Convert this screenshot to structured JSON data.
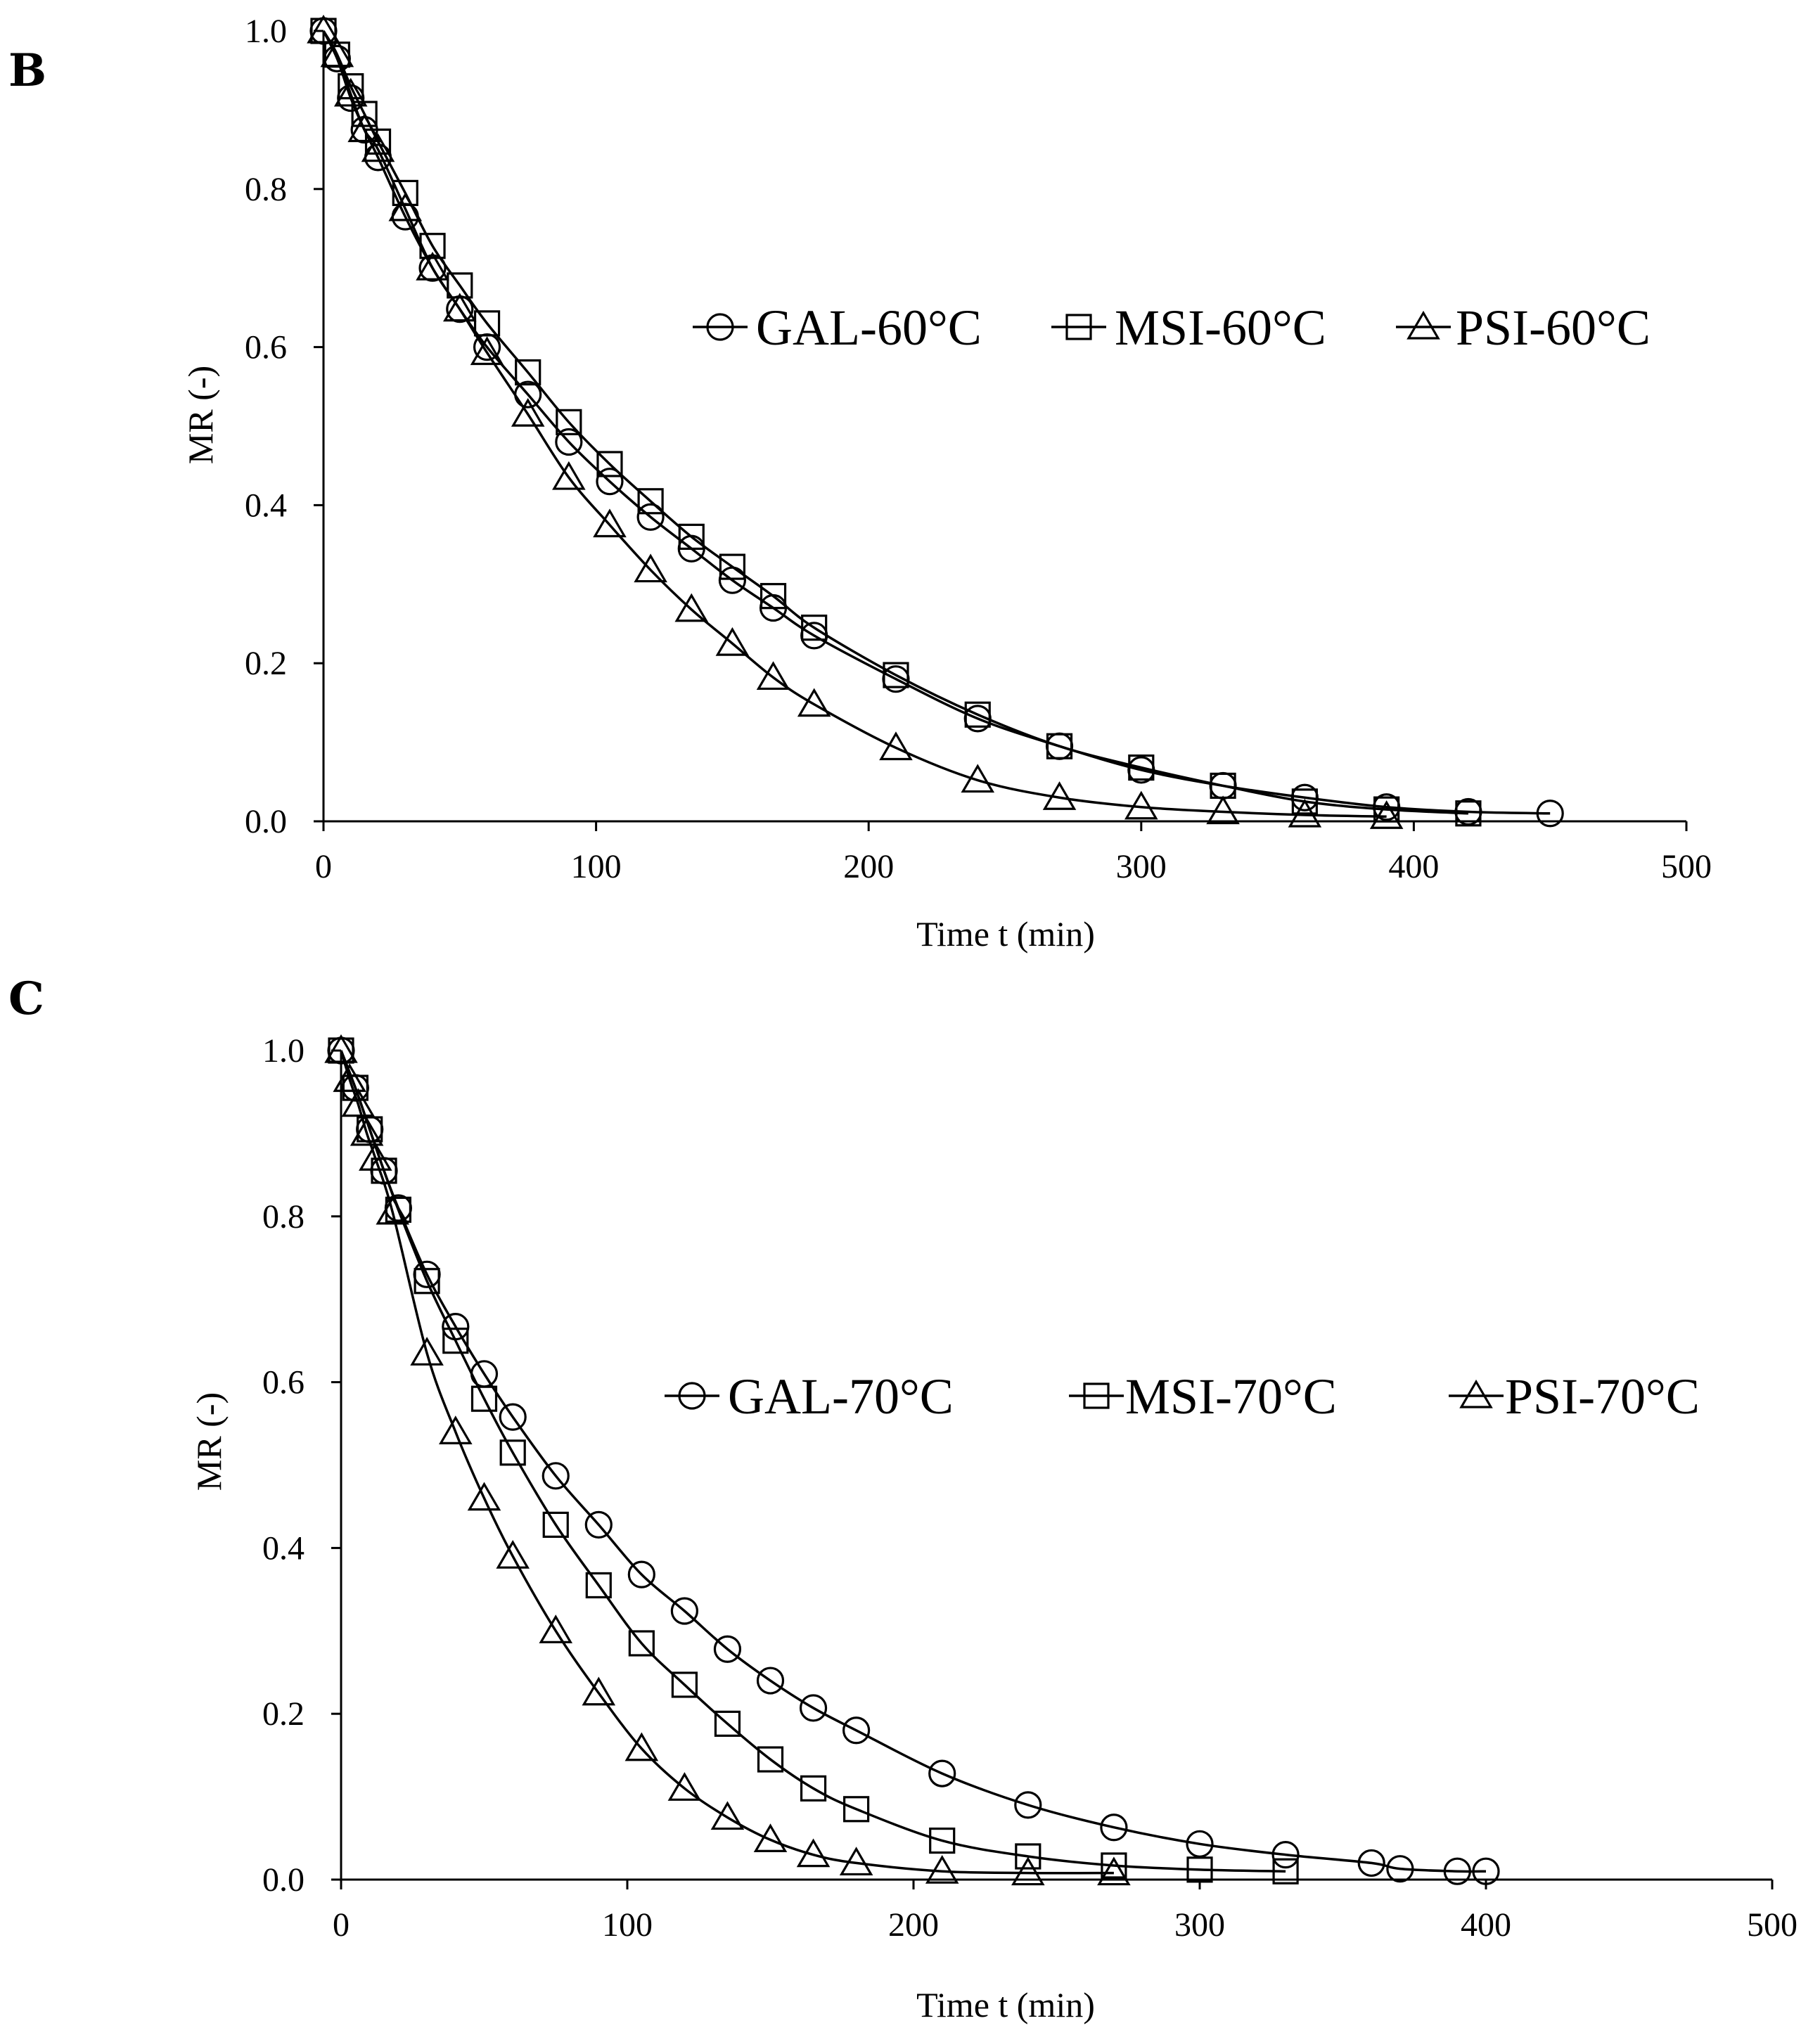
{
  "chart_data": [
    {
      "panel_label": "B",
      "type": "line",
      "xlabel": "Time t (min)",
      "ylabel": "MR (-)",
      "xlim": [
        0,
        500
      ],
      "ylim": [
        0.0,
        1.0
      ],
      "xticks": [
        "0",
        "100",
        "200",
        "300",
        "400",
        "500"
      ],
      "yticks": [
        "0.0",
        "0.2",
        "0.4",
        "0.6",
        "0.8",
        "1.0"
      ],
      "grid": false,
      "legend_position": "top-right",
      "series": [
        {
          "name": "GAL-60°C",
          "marker": "circle",
          "x": [
            0,
            5,
            10,
            15,
            20,
            30,
            40,
            50,
            60,
            75,
            90,
            105,
            120,
            135,
            150,
            165,
            180,
            210,
            240,
            270,
            300,
            330,
            360,
            390,
            420,
            450
          ],
          "y": [
            1.0,
            0.965,
            0.915,
            0.875,
            0.84,
            0.765,
            0.7,
            0.648,
            0.6,
            0.54,
            0.48,
            0.43,
            0.385,
            0.345,
            0.305,
            0.27,
            0.235,
            0.18,
            0.13,
            0.095,
            0.065,
            0.045,
            0.03,
            0.018,
            0.012,
            0.01
          ]
        },
        {
          "name": "MSI-60°C",
          "marker": "square",
          "x": [
            0,
            5,
            10,
            15,
            20,
            30,
            40,
            50,
            60,
            75,
            90,
            105,
            120,
            135,
            150,
            165,
            180,
            210,
            240,
            270,
            300,
            330,
            360,
            390,
            420
          ],
          "y": [
            1.0,
            0.97,
            0.93,
            0.895,
            0.86,
            0.795,
            0.728,
            0.678,
            0.63,
            0.568,
            0.505,
            0.452,
            0.405,
            0.36,
            0.322,
            0.285,
            0.245,
            0.185,
            0.135,
            0.095,
            0.068,
            0.045,
            0.025,
            0.015,
            0.01
          ]
        },
        {
          "name": "PSI-60°C",
          "marker": "triangle",
          "x": [
            0,
            5,
            10,
            15,
            20,
            30,
            40,
            50,
            60,
            75,
            90,
            105,
            120,
            135,
            150,
            165,
            180,
            210,
            240,
            270,
            300,
            330,
            360,
            390
          ],
          "y": [
            1.0,
            0.97,
            0.92,
            0.875,
            0.85,
            0.775,
            0.7,
            0.648,
            0.593,
            0.515,
            0.435,
            0.375,
            0.318,
            0.268,
            0.225,
            0.182,
            0.148,
            0.093,
            0.052,
            0.03,
            0.018,
            0.012,
            0.008,
            0.006
          ]
        }
      ]
    },
    {
      "panel_label": "C",
      "type": "line",
      "xlabel": "Time t (min)",
      "ylabel": "MR (-)",
      "xlim": [
        0,
        500
      ],
      "ylim": [
        0.0,
        1.0
      ],
      "xticks": [
        "0",
        "100",
        "200",
        "300",
        "400",
        "500"
      ],
      "yticks": [
        "0.0",
        "0.2",
        "0.4",
        "0.6",
        "0.8",
        "1.0"
      ],
      "grid": false,
      "legend_position": "top-right",
      "series": [
        {
          "name": "GAL-70°C",
          "marker": "circle",
          "x": [
            0,
            5,
            10,
            15,
            20,
            30,
            40,
            50,
            60,
            75,
            90,
            105,
            120,
            135,
            150,
            165,
            180,
            210,
            240,
            270,
            300,
            330,
            360,
            370,
            390,
            400
          ],
          "y": [
            1.0,
            0.955,
            0.905,
            0.855,
            0.81,
            0.73,
            0.667,
            0.61,
            0.558,
            0.487,
            0.428,
            0.368,
            0.324,
            0.278,
            0.24,
            0.207,
            0.18,
            0.128,
            0.09,
            0.063,
            0.043,
            0.03,
            0.02,
            0.013,
            0.01,
            0.01
          ]
        },
        {
          "name": "MSI-70°C",
          "marker": "square",
          "x": [
            0,
            5,
            10,
            15,
            20,
            30,
            40,
            50,
            60,
            75,
            90,
            105,
            120,
            135,
            150,
            165,
            180,
            210,
            240,
            270,
            300,
            330
          ],
          "y": [
            1.0,
            0.955,
            0.905,
            0.855,
            0.808,
            0.722,
            0.65,
            0.58,
            0.515,
            0.428,
            0.355,
            0.285,
            0.235,
            0.188,
            0.145,
            0.11,
            0.085,
            0.047,
            0.028,
            0.017,
            0.012,
            0.01
          ]
        },
        {
          "name": "PSI-70°C",
          "marker": "triangle",
          "x": [
            0,
            3,
            6,
            9,
            12,
            18,
            30,
            40,
            50,
            60,
            75,
            90,
            105,
            120,
            135,
            150,
            165,
            180,
            210,
            240,
            270
          ],
          "y": [
            1.0,
            0.965,
            0.935,
            0.9,
            0.87,
            0.805,
            0.635,
            0.54,
            0.46,
            0.39,
            0.3,
            0.225,
            0.158,
            0.11,
            0.075,
            0.048,
            0.03,
            0.02,
            0.01,
            0.008,
            0.008
          ]
        }
      ]
    }
  ]
}
